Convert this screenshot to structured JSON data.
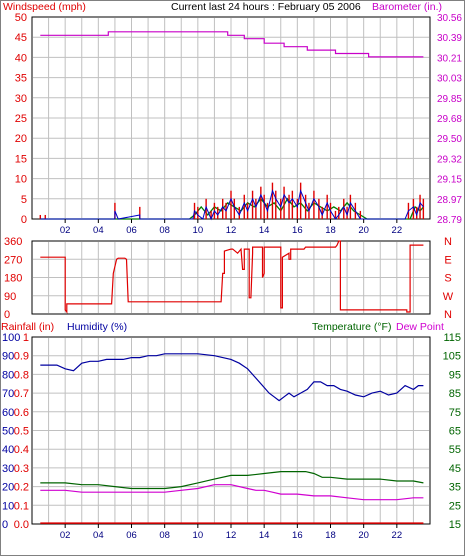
{
  "header": {
    "left_label": "Windspeed (mph)",
    "title": "Current last 24 hours : February 05 2006",
    "right_label": "Barometer (in.)"
  },
  "colors": {
    "wind": "#e00000",
    "gust_blue": "#0000c8",
    "gust_green": "#008000",
    "barometer": "#c800c8",
    "direction": "#e00000",
    "humidity": "#0000a0",
    "temperature": "#006400",
    "dewpoint": "#d000d0",
    "rain": "#e00000",
    "grid": "#c0c0c0",
    "border": "#000000"
  },
  "chart_data": [
    {
      "type": "line",
      "panel": "wind-barometer",
      "xlabel": "",
      "x_ticks": [
        "02",
        "04",
        "06",
        "08",
        "10",
        "12",
        "14",
        "16",
        "18",
        "20",
        "22"
      ],
      "ylabel": "Windspeed (mph)",
      "y_ticks": [
        "0",
        "5",
        "10",
        "15",
        "20",
        "25",
        "30",
        "35",
        "40",
        "45",
        "50"
      ],
      "ylim": [
        0,
        50
      ],
      "y2label": "Barometer (in.)",
      "y2_ticks": [
        "28.79",
        "28.97",
        "29.15",
        "29.32",
        "29.50",
        "29.68",
        "29.85",
        "30.03",
        "30.21",
        "30.39",
        "30.56"
      ],
      "y2lim": [
        28.79,
        30.56
      ],
      "grid": true,
      "series": [
        {
          "name": "Barometer (in.)",
          "axis": "right",
          "x": [
            0.5,
            4.6,
            4.6,
            11.8,
            11.8,
            12.8,
            12.8,
            14.0,
            14.0,
            15.2,
            15.2,
            16.6,
            16.6,
            18.3,
            18.3,
            20.3,
            20.3,
            23.6
          ],
          "values": [
            30.4,
            30.4,
            30.43,
            30.43,
            30.4,
            30.4,
            30.37,
            30.37,
            30.33,
            30.33,
            30.3,
            30.3,
            30.27,
            30.27,
            30.24,
            30.24,
            30.21,
            30.21
          ]
        },
        {
          "name": "Windspeed gust",
          "axis": "left",
          "x": [
            0.5,
            0.8,
            0.8,
            5.0,
            5.0,
            5.2,
            5.2,
            6.5,
            6.5,
            6.7,
            6.7,
            9.7,
            9.8,
            10.0,
            10.3,
            10.5,
            10.8,
            11.0,
            11.2,
            11.5,
            11.7,
            12.0,
            12.2,
            12.5,
            12.8,
            13.0,
            13.3,
            13.5,
            13.8,
            14.0,
            14.2,
            14.5,
            14.7,
            15.0,
            15.2,
            15.5,
            15.7,
            16.0,
            16.2,
            16.5,
            16.7,
            17.0,
            17.3,
            17.5,
            17.8,
            18.0,
            18.3,
            18.5,
            18.8,
            19.0,
            19.2,
            19.5,
            19.8,
            20.0,
            22.5,
            22.7,
            23.0,
            23.2,
            23.4,
            23.6
          ],
          "values": [
            1,
            1,
            0,
            0,
            4,
            0,
            0,
            3,
            0,
            0,
            0,
            0,
            4,
            3,
            0,
            5,
            2,
            4,
            3,
            5,
            4,
            7,
            5,
            3,
            6,
            4,
            7,
            5,
            8,
            6,
            4,
            9,
            7,
            5,
            8,
            6,
            7,
            5,
            9,
            6,
            4,
            7,
            5,
            3,
            6,
            4,
            2,
            3,
            5,
            3,
            6,
            4,
            2,
            0,
            0,
            4,
            5,
            3,
            6,
            5
          ]
        },
        {
          "name": "Windspeed average",
          "axis": "left",
          "x": [
            0.5,
            9.5,
            9.8,
            10.2,
            10.6,
            11.0,
            11.4,
            11.8,
            12.2,
            12.6,
            13.0,
            13.4,
            13.8,
            14.2,
            14.6,
            15.0,
            15.4,
            15.8,
            16.2,
            16.6,
            17.0,
            17.4,
            17.8,
            18.2,
            18.6,
            19.0,
            19.4,
            19.8,
            20.2,
            22.8,
            23.1,
            23.4,
            23.6
          ],
          "values": [
            0,
            0,
            1,
            3,
            1,
            3,
            2,
            4,
            3,
            2,
            4,
            3,
            5,
            3,
            4,
            2,
            5,
            3,
            4,
            2,
            4,
            3,
            2,
            3,
            2,
            4,
            2,
            1,
            0,
            0,
            3,
            2,
            3
          ]
        }
      ]
    },
    {
      "type": "line",
      "panel": "wind-direction",
      "y_ticks": [
        "0",
        "90",
        "180",
        "270",
        "360"
      ],
      "ylim": [
        0,
        360
      ],
      "y2_ticks": [
        "N",
        "W",
        "S",
        "E",
        "N"
      ],
      "grid": true,
      "series": [
        {
          "name": "Wind direction",
          "x": [
            0.5,
            2.0,
            2.0,
            2.1,
            2.1,
            4.8,
            4.9,
            5.1,
            5.2,
            5.6,
            5.7,
            5.8,
            5.8,
            11.4,
            11.5,
            11.6,
            11.6,
            12.0,
            12.1,
            12.4,
            12.6,
            12.7,
            12.8,
            12.8,
            13.1,
            13.1,
            13.2,
            13.3,
            13.3,
            13.9,
            13.9,
            14.0,
            14.0,
            15.0,
            15.0,
            15.1,
            15.1,
            15.5,
            15.5,
            15.6,
            15.6,
            16.4,
            16.5,
            18.3,
            18.4,
            18.5,
            18.6,
            18.6,
            22.6,
            22.6,
            22.8,
            22.8,
            23.6
          ],
          "values": [
            280,
            280,
            20,
            10,
            50,
            50,
            200,
            270,
            275,
            275,
            270,
            60,
            60,
            60,
            200,
            200,
            310,
            320,
            320,
            300,
            320,
            220,
            220,
            320,
            320,
            80,
            80,
            300,
            330,
            330,
            180,
            200,
            330,
            330,
            30,
            30,
            280,
            300,
            270,
            270,
            320,
            320,
            330,
            330,
            340,
            360,
            360,
            20,
            20,
            10,
            10,
            340,
            340
          ]
        }
      ]
    },
    {
      "type": "line",
      "panel": "rain-humidity-temperature",
      "left_label": "Rainfall (in)",
      "left_ticks": [
        "0.0",
        "0.1",
        "0.2",
        "0.3",
        "0.4",
        "0.5",
        "0.6",
        "0.7",
        "0.8",
        "0.9",
        "1"
      ],
      "left_lim": [
        0,
        1
      ],
      "humidity_label": "Humidity (%)",
      "humidity_ticks": [
        "0",
        "10",
        "20",
        "30",
        "40",
        "50",
        "60",
        "70",
        "80",
        "90",
        "100"
      ],
      "humidity_lim": [
        0,
        100
      ],
      "right_label": "Temperature (°F)",
      "right_label_2": "Dew Point",
      "right_ticks": [
        "15",
        "25",
        "35",
        "45",
        "55",
        "65",
        "75",
        "85",
        "95",
        "105",
        "115"
      ],
      "right_lim": [
        15,
        115
      ],
      "grid": true,
      "series": [
        {
          "name": "Humidity (%)",
          "axis": "humidity",
          "x": [
            0.5,
            1.5,
            2.0,
            2.5,
            3.0,
            3.5,
            4.0,
            4.5,
            5.0,
            5.5,
            6.0,
            6.5,
            7.0,
            7.5,
            8.0,
            9.0,
            10.0,
            11.0,
            11.5,
            12.0,
            12.5,
            13.0,
            13.5,
            14.0,
            14.3,
            14.6,
            14.9,
            15.2,
            15.5,
            15.8,
            16.2,
            16.6,
            17.0,
            17.4,
            17.8,
            18.2,
            18.6,
            19.0,
            19.5,
            20.0,
            20.5,
            21.0,
            21.5,
            22.0,
            22.5,
            23.0,
            23.3,
            23.6
          ],
          "values": [
            85,
            85,
            83,
            82,
            86,
            87,
            87,
            88,
            88,
            88,
            89,
            89,
            90,
            90,
            91,
            91,
            91,
            90,
            89,
            88,
            86,
            83,
            78,
            73,
            70,
            68,
            66,
            68,
            70,
            68,
            70,
            72,
            76,
            76,
            74,
            74,
            72,
            71,
            69,
            68,
            70,
            71,
            69,
            70,
            74,
            72,
            74,
            74
          ]
        },
        {
          "name": "Temperature (°F)",
          "axis": "right",
          "x": [
            0.5,
            2.0,
            3.0,
            4.0,
            5.0,
            6.0,
            7.0,
            8.0,
            9.0,
            10.0,
            11.0,
            12.0,
            13.0,
            14.0,
            15.0,
            16.0,
            16.5,
            17.0,
            17.5,
            18.0,
            19.0,
            20.0,
            21.0,
            22.0,
            23.0,
            23.6
          ],
          "values": [
            37,
            37,
            36,
            36,
            35,
            34,
            34,
            34,
            35,
            37,
            39,
            41,
            41,
            42,
            43,
            43,
            43,
            42,
            40,
            40,
            39,
            39,
            39,
            38,
            38,
            37
          ]
        },
        {
          "name": "Dew Point",
          "axis": "right",
          "x": [
            0.5,
            2.0,
            3.0,
            4.0,
            5.0,
            6.0,
            7.0,
            8.0,
            9.0,
            10.0,
            11.0,
            12.0,
            13.0,
            13.5,
            14.0,
            14.5,
            15.0,
            16.0,
            17.0,
            18.0,
            19.0,
            20.0,
            21.0,
            22.0,
            23.0,
            23.6
          ],
          "values": [
            33,
            33,
            32,
            32,
            32,
            32,
            32,
            32,
            33,
            34,
            36,
            36,
            34,
            33,
            33,
            32,
            31,
            31,
            30,
            30,
            29,
            28,
            28,
            28,
            29,
            29
          ]
        },
        {
          "name": "Rainfall (in)",
          "axis": "left",
          "x": [
            0.5,
            23.6
          ],
          "values": [
            0,
            0
          ]
        }
      ]
    }
  ]
}
